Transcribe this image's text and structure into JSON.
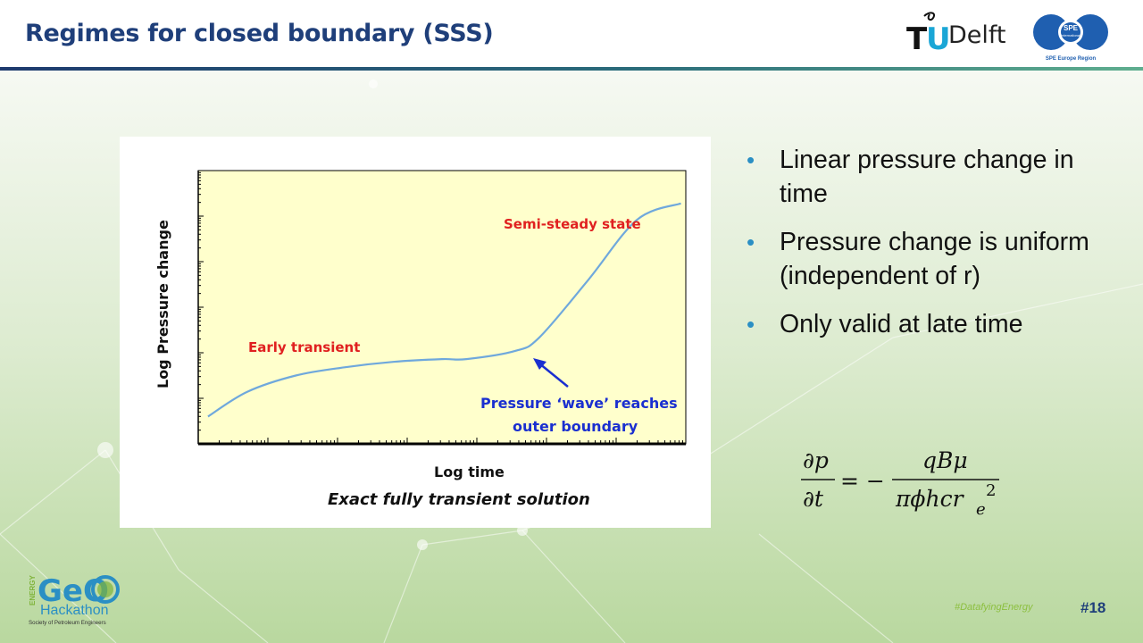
{
  "slide": {
    "title": "Regimes for closed boundary (SSS)",
    "page_number": "#18",
    "hashtag": "#DatafyingEnergy"
  },
  "logos": {
    "tudelft": "TUDelft",
    "spe_label": "SPE",
    "spe_sub": "International",
    "spe_region": "SPE Europe Region",
    "geo_energy": "ENERGY",
    "geo_title": "GeO",
    "geo_hackathon": "Hackathon",
    "geo_society": "Society of Petroleum Engineers"
  },
  "figure": {
    "ylabel": "Log Pressure change",
    "xlabel": "Log time",
    "caption": "Exact fully transient solution",
    "annotations": {
      "semi_steady": "Semi-steady state",
      "early_transient": "Early transient",
      "wave_line1": "Pressure ‘wave’ reaches",
      "wave_line2": "outer boundary"
    },
    "colors": {
      "plot_bg": "#ffffcc",
      "curve": "#6fa8dc",
      "annotation_red": "#e02020",
      "annotation_blue": "#1a2fd0"
    }
  },
  "chart_data": {
    "type": "line",
    "xlabel": "Log time",
    "ylabel": "Log Pressure change",
    "xlim": [
      0,
      1
    ],
    "ylim": [
      0,
      1
    ],
    "series": [
      {
        "x": [
          0.02,
          0.1,
          0.2,
          0.3,
          0.4,
          0.5,
          0.55,
          0.65,
          0.7,
          0.8,
          0.9,
          0.99
        ],
        "y": [
          0.1,
          0.19,
          0.25,
          0.28,
          0.3,
          0.31,
          0.31,
          0.34,
          0.39,
          0.6,
          0.82,
          0.88
        ]
      }
    ]
  },
  "bullets": [
    "Linear pressure change in time",
    "Pressure change is uniform (independent of r)",
    "Only valid at late time"
  ],
  "formula": {
    "lhs_num": "∂p",
    "lhs_den": "∂t",
    "equals": "= −",
    "rhs_num": "qBμ",
    "rhs_den": "πϕhcr",
    "rhs_den_sub": "e",
    "rhs_den_sup": "2"
  }
}
